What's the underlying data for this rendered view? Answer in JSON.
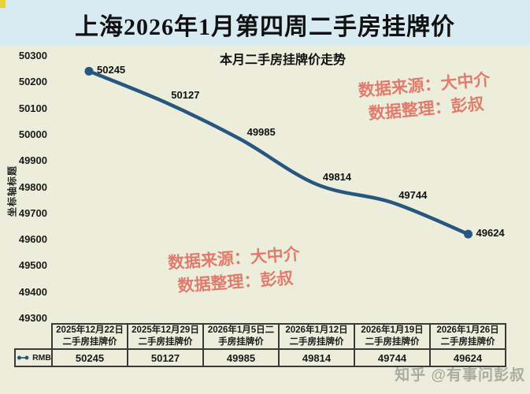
{
  "header": {
    "title": "上海2026年1月第四周二手房挂牌价"
  },
  "chart_data": {
    "type": "line",
    "title": "本月二手房挂牌价走势",
    "y_axis_title": "坐标轴标题",
    "series": [
      {
        "name": "RMB",
        "values": [
          50245,
          50127,
          49985,
          49814,
          49744,
          49624
        ]
      }
    ],
    "categories": [
      "2025年12月22日二手房挂牌价",
      "2025年12月29日二手房挂牌价",
      "2026年1月5日二手房挂牌价",
      "2026年1月12日二手房挂牌价",
      "2026年1月19日二手房挂牌价",
      "2026年1月26日二手房挂牌价"
    ],
    "categories_lines": [
      [
        "2025年12月22日",
        "二手房挂牌价"
      ],
      [
        "2025年12月29日",
        "二手房挂牌价"
      ],
      [
        "2026年1月5日二",
        "手房挂牌价"
      ],
      [
        "2026年1月12日",
        "二手房挂牌价"
      ],
      [
        "2026年1月19日",
        "二手房挂牌价"
      ],
      [
        "2026年1月26日",
        "二手房挂牌价"
      ]
    ],
    "ylim": [
      49300,
      50300
    ],
    "ytick_step": 100,
    "yticks": [
      50300,
      50200,
      50100,
      50000,
      49900,
      49800,
      49700,
      49600,
      49500,
      49400,
      49300
    ],
    "grid": false,
    "data_labels": true,
    "legend_position": "table-left",
    "line_color": "#27577f"
  },
  "watermark": {
    "line1": "数据来源：大中介",
    "line2": "数据整理：彭叔",
    "color": "#e07c6d"
  },
  "footer_watermark": {
    "text": "知乎 @有事问彭叔",
    "color": "#9c9c93"
  },
  "colors": {
    "header_bg": "#d8eaf2",
    "chart_bg": "#eceedb",
    "table_border": "#3a3a38",
    "accent_corner": "#e8d23a",
    "line": "#27577f"
  }
}
